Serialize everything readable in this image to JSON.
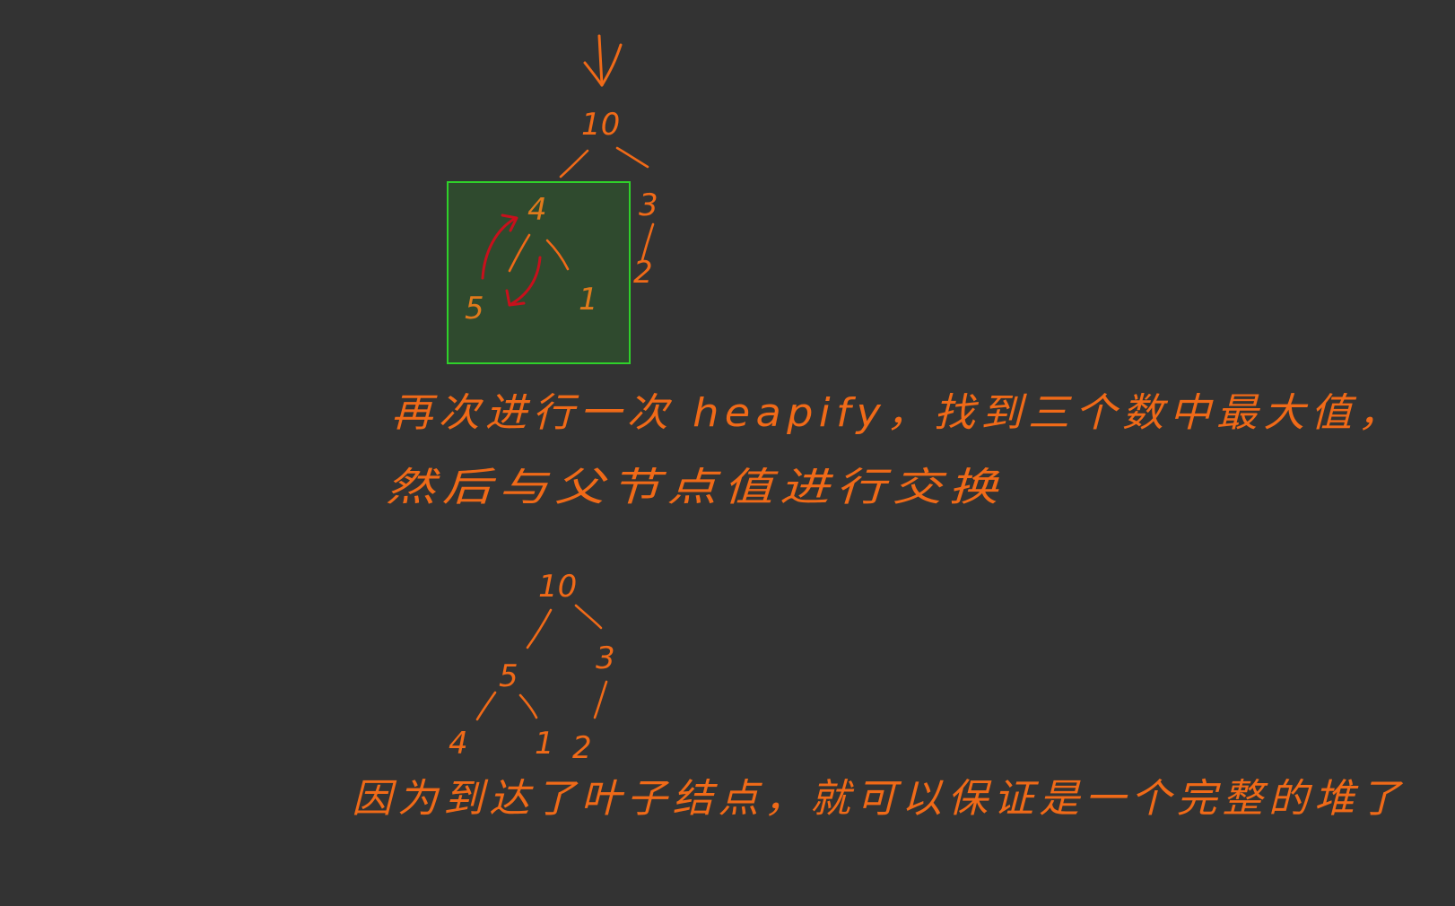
{
  "colors": {
    "background": "#333333",
    "ink": "#f06a18",
    "ink_dim": "#e07a1c",
    "swap_arrow": "#c8101c",
    "highlight_border": "#2fd12a",
    "highlight_fill": "#2f4a2e"
  },
  "tree_before": {
    "nodes": [
      {
        "id": "root",
        "label": "10"
      },
      {
        "id": "left",
        "label": "4"
      },
      {
        "id": "right",
        "label": "3"
      },
      {
        "id": "left_left",
        "label": "5"
      },
      {
        "id": "left_right",
        "label": "1"
      },
      {
        "id": "right_left",
        "label": "2"
      }
    ]
  },
  "note_1": {
    "line_1": "再次进行一次 heapify，找到三个数中最大值，",
    "line_2": "然后与父节点值进行交换"
  },
  "tree_after": {
    "nodes": [
      {
        "id": "root",
        "label": "10"
      },
      {
        "id": "left",
        "label": "5"
      },
      {
        "id": "right",
        "label": "3"
      },
      {
        "id": "left_left",
        "label": "4"
      },
      {
        "id": "left_right",
        "label": "1"
      },
      {
        "id": "right_left",
        "label": "2"
      }
    ]
  },
  "note_2": {
    "line_1": "因为到达了叶子结点，就可以保证是一个完整的堆了"
  }
}
